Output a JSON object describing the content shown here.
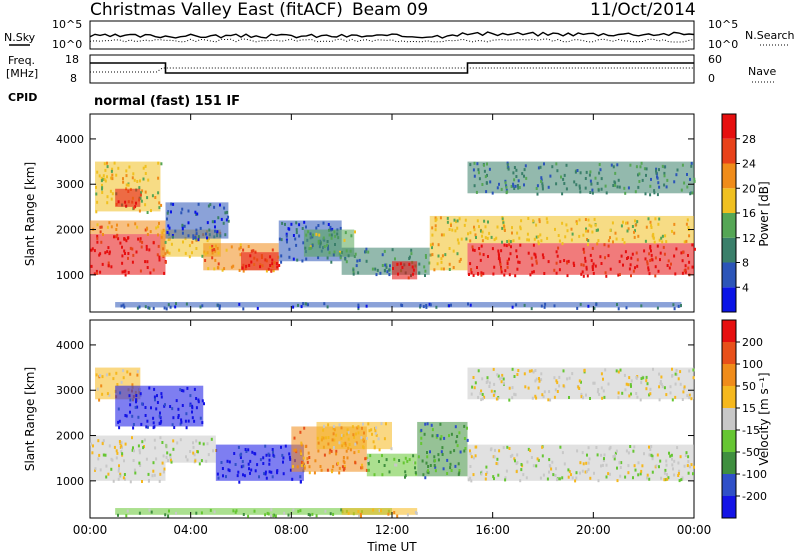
{
  "header": {
    "title": "Christmas Valley East (fitACF)",
    "beam": "Beam 09",
    "date": "11/Oct/2014"
  },
  "sky_panel": {
    "left_label": "N.Sky",
    "right_label": "N.Search",
    "left_ticks": [
      "10^5",
      "10^0"
    ],
    "right_ticks": [
      "10^5",
      "10^0"
    ]
  },
  "freq_panel": {
    "left_label_1": "Freq.",
    "left_label_2": "[MHz]",
    "right_label": "Nave",
    "left_ticks": [
      "18",
      "8"
    ],
    "right_ticks": [
      "60",
      "0"
    ],
    "cpid_label": "CPID",
    "cpid_text": "normal (fast) 151 IF"
  },
  "x_axis": {
    "label": "Time UT",
    "ticks": [
      "00:00",
      "04:00",
      "08:00",
      "12:00",
      "16:00",
      "20:00",
      "00:00"
    ]
  },
  "chart_data": [
    {
      "type": "heatmap",
      "ylabel": "Slant Range [km]",
      "xlabel": "",
      "yticks": [
        1000,
        2000,
        3000,
        4000
      ],
      "ylim": [
        180,
        4550
      ],
      "xlim": [
        0,
        24
      ],
      "colorbar": {
        "label": "Power [dB]",
        "ticks": [
          "4",
          "8",
          "12",
          "16",
          "20",
          "24",
          "28"
        ],
        "colors": [
          "#0a14e6",
          "#2c55b8",
          "#3a7f6a",
          "#55a655",
          "#f0c020",
          "#f08c1a",
          "#e8421a",
          "#e60f0f"
        ]
      },
      "bands": [
        {
          "t0": 0.0,
          "t1": 3.0,
          "r0": 1000,
          "r1": 1900,
          "c": 7
        },
        {
          "t0": 0.0,
          "t1": 3.0,
          "r0": 1900,
          "r1": 2200,
          "c": 5
        },
        {
          "t0": 0.2,
          "t1": 2.8,
          "r0": 2400,
          "r1": 3500,
          "c": 4
        },
        {
          "t0": 1.0,
          "t1": 2.0,
          "r0": 2500,
          "r1": 2900,
          "c": 7
        },
        {
          "t0": 2.8,
          "t1": 5.2,
          "r0": 1400,
          "r1": 2000,
          "c": 4
        },
        {
          "t0": 3.0,
          "t1": 5.5,
          "r0": 1800,
          "r1": 2600,
          "c": 1
        },
        {
          "t0": 4.5,
          "t1": 7.5,
          "r0": 1100,
          "r1": 1700,
          "c": 5
        },
        {
          "t0": 6.0,
          "t1": 7.5,
          "r0": 1100,
          "r1": 1500,
          "c": 7
        },
        {
          "t0": 7.5,
          "t1": 10.0,
          "r0": 1300,
          "r1": 2200,
          "c": 1
        },
        {
          "t0": 8.5,
          "t1": 10.5,
          "r0": 1400,
          "r1": 2000,
          "c": 3
        },
        {
          "t0": 10.0,
          "t1": 13.5,
          "r0": 1000,
          "r1": 1600,
          "c": 2
        },
        {
          "t0": 12.0,
          "t1": 13.0,
          "r0": 900,
          "r1": 1300,
          "c": 7
        },
        {
          "t0": 13.5,
          "t1": 15.0,
          "r0": 1100,
          "r1": 2300,
          "c": 4
        },
        {
          "t0": 15.0,
          "t1": 24.0,
          "r0": 1000,
          "r1": 1700,
          "c": 7
        },
        {
          "t0": 15.0,
          "t1": 24.0,
          "r0": 1700,
          "r1": 2300,
          "c": 4
        },
        {
          "t0": 15.0,
          "t1": 24.0,
          "r0": 2800,
          "r1": 3500,
          "c": 2
        },
        {
          "t0": 1.0,
          "t1": 23.5,
          "r0": 280,
          "r1": 400,
          "c": 1
        }
      ]
    },
    {
      "type": "heatmap",
      "ylabel": "Slant Range [km]",
      "xlabel": "Time UT",
      "yticks": [
        1000,
        2000,
        3000,
        4000
      ],
      "ylim": [
        180,
        4550
      ],
      "xlim": [
        0,
        24
      ],
      "colorbar": {
        "label": "Velocity [m s⁻¹]",
        "unit_sup": "-1",
        "ticks": [
          "200",
          "100",
          "50",
          "15",
          "-15",
          "-50",
          "-100",
          "-200"
        ],
        "colors": [
          "#1414e6",
          "#3050c8",
          "#3f8f3f",
          "#66c633",
          "#c8c8c8",
          "#f5b81e",
          "#f08c1a",
          "#e8501a",
          "#e60f0f"
        ]
      },
      "bands": [
        {
          "t0": 0.0,
          "t1": 3.0,
          "r0": 1000,
          "r1": 2000,
          "c": 4
        },
        {
          "t0": 0.2,
          "t1": 2.0,
          "r0": 2800,
          "r1": 3500,
          "c": 5
        },
        {
          "t0": 1.0,
          "t1": 4.5,
          "r0": 2200,
          "r1": 3100,
          "c": 0
        },
        {
          "t0": 3.0,
          "t1": 5.0,
          "r0": 1400,
          "r1": 2000,
          "c": 4
        },
        {
          "t0": 5.0,
          "t1": 8.5,
          "r0": 1000,
          "r1": 1800,
          "c": 0
        },
        {
          "t0": 8.0,
          "t1": 11.0,
          "r0": 1200,
          "r1": 2200,
          "c": 6
        },
        {
          "t0": 9.0,
          "t1": 12.0,
          "r0": 1700,
          "r1": 2300,
          "c": 5
        },
        {
          "t0": 11.0,
          "t1": 13.0,
          "r0": 1100,
          "r1": 1600,
          "c": 3
        },
        {
          "t0": 13.0,
          "t1": 15.0,
          "r0": 1100,
          "r1": 2300,
          "c": 2
        },
        {
          "t0": 15.0,
          "t1": 24.0,
          "r0": 1000,
          "r1": 1800,
          "c": 4
        },
        {
          "t0": 15.0,
          "t1": 24.0,
          "r0": 2800,
          "r1": 3500,
          "c": 4
        },
        {
          "t0": 1.0,
          "t1": 12.0,
          "r0": 250,
          "r1": 400,
          "c": 3
        },
        {
          "t0": 10.0,
          "t1": 13.0,
          "r0": 250,
          "r1": 400,
          "c": 5
        }
      ]
    }
  ]
}
